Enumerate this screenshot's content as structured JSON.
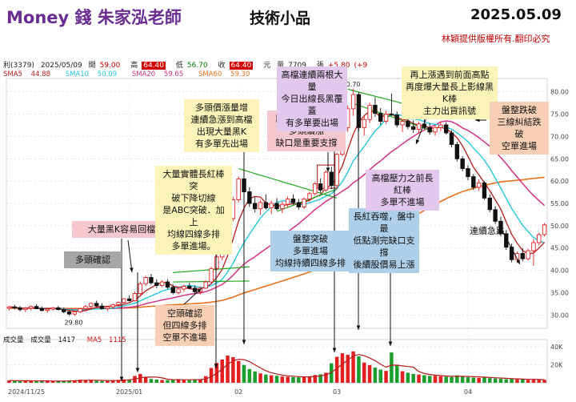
{
  "header": {
    "title": "Money 錢  朱家泓老師",
    "topic": "技術小品",
    "date": "2025.05.09",
    "copyright": "林穎提供版權所有.翻印必究"
  },
  "quote": {
    "code": "利(3379)",
    "date": "2025/05/09",
    "open_label": "開",
    "open": "59.00",
    "high_label": "高",
    "high": "64.40",
    "low_label": "低",
    "low": "56.70",
    "close_label": "收",
    "close": "64.40",
    "unit": "元",
    "volume_label": "量",
    "volume": "7709",
    "change_label": "張",
    "change": "+5.80",
    "change_pct": "(+9"
  },
  "ma_legend": [
    {
      "label": "SMA5",
      "value": "44.88",
      "color": "#b71c1c"
    },
    {
      "label": "SMA10",
      "value": "50.09",
      "color": "#26c6da"
    },
    {
      "label": "SMA20",
      "value": "59.65",
      "color": "#d63384"
    },
    {
      "label": "SMA60",
      "value": "59.30",
      "color": "#e8711c"
    }
  ],
  "volume_legend": {
    "label1": "成交量",
    "label2": "成交量",
    "value": "1417",
    "ma_label": "MA5",
    "ma_value": "1115"
  },
  "annotations": {
    "a1": "大量黑K容易回檔",
    "a2": "多頭確認",
    "a3": "空頭確認\n但四線多排\n空單不進場",
    "a4": "大量實體長紅棒突\n破下降切線\n是ABC突破．加上\n均線四線多排\n多單進場。",
    "a5": "多頭價漲量增\n連續急漲到高檔\n出現大量黑K\n有多單先出場",
    "a6": "跳空上漲過前高\n多頭續漲\n缺口是重要支撐",
    "a7": "盤整突破\n多單進場\n均線持續四線多排",
    "a8": "高檔連續兩根大量\n今日出線長黑覆蓋\n有多單要出場",
    "a9": "長紅吞噬，盤中最\n低點測完缺口支撐\n後續股價易上漲",
    "a10": "高檔壓力之前長紅棒\n多單不進場",
    "a11": "再上漲遇到前面高點\n再度爆大量長上影線黑K棒\n主力出貨訊號",
    "a12": "盤整跌破\n三線糾結跌破\n空單進場",
    "a13": "連續急跌"
  },
  "chart_data": {
    "type": "candlestick",
    "y_ticks": [
      30,
      35,
      40,
      45,
      50,
      55,
      60,
      65,
      70,
      75,
      80
    ],
    "ylim": [
      27,
      83
    ],
    "volume_ticks": [
      "20K",
      "40K"
    ],
    "volume_ylim": [
      0,
      48000
    ],
    "x_labels": [
      "2024/11/25",
      "2025/01",
      "02",
      "03",
      "04"
    ],
    "price_labels": {
      "high": "80.70",
      "low": "29.80"
    },
    "candles": [
      [
        31.5,
        32.0,
        31.0,
        31.8
      ],
      [
        31.8,
        32.3,
        31.2,
        31.6
      ],
      [
        31.6,
        32.0,
        30.8,
        31.2
      ],
      [
        31.2,
        31.8,
        30.6,
        31.5
      ],
      [
        31.5,
        32.1,
        31.0,
        31.9
      ],
      [
        31.9,
        32.4,
        31.3,
        31.4
      ],
      [
        31.4,
        31.9,
        30.8,
        31.0
      ],
      [
        31.0,
        31.6,
        30.5,
        31.3
      ],
      [
        31.3,
        31.8,
        30.9,
        31.6
      ],
      [
        31.6,
        32.0,
        31.0,
        31.2
      ],
      [
        31.2,
        31.6,
        30.4,
        30.7
      ],
      [
        30.7,
        31.2,
        29.8,
        30.2
      ],
      [
        30.2,
        30.9,
        29.8,
        30.7
      ],
      [
        30.7,
        31.6,
        30.4,
        31.4
      ],
      [
        31.4,
        32.2,
        31.0,
        31.9
      ],
      [
        31.9,
        32.8,
        31.5,
        32.6
      ],
      [
        32.6,
        33.2,
        31.8,
        32.0
      ],
      [
        32.0,
        32.6,
        31.2,
        31.4
      ],
      [
        31.4,
        32.0,
        30.8,
        31.8
      ],
      [
        31.8,
        32.5,
        31.4,
        32.3
      ],
      [
        32.3,
        33.0,
        31.9,
        32.8
      ],
      [
        32.8,
        33.8,
        32.4,
        33.6
      ],
      [
        33.6,
        34.4,
        33.0,
        33.2
      ],
      [
        33.2,
        35.2,
        33.0,
        34.8
      ],
      [
        34.8,
        37.5,
        34.5,
        37.0
      ],
      [
        37.0,
        38.8,
        36.5,
        38.4
      ],
      [
        38.4,
        39.2,
        36.8,
        37.2
      ],
      [
        37.2,
        38.0,
        36.0,
        36.6
      ],
      [
        36.6,
        37.8,
        36.2,
        37.4
      ],
      [
        37.4,
        38.0,
        35.8,
        36.2
      ],
      [
        36.2,
        36.8,
        34.6,
        35.0
      ],
      [
        35.0,
        36.2,
        34.6,
        35.8
      ],
      [
        35.8,
        36.8,
        35.2,
        36.4
      ],
      [
        36.4,
        37.2,
        35.8,
        36.0
      ],
      [
        36.0,
        36.6,
        34.8,
        35.2
      ],
      [
        35.2,
        36.4,
        34.6,
        36.0
      ],
      [
        36.0,
        37.8,
        35.8,
        37.4
      ],
      [
        37.4,
        40.8,
        37.2,
        40.4
      ],
      [
        40.4,
        43.5,
        40.0,
        43.0
      ],
      [
        43.0,
        44.8,
        42.2,
        44.2
      ],
      [
        44.2,
        52.0,
        44.0,
        51.6
      ],
      [
        51.6,
        56.5,
        51.0,
        55.8
      ],
      [
        55.8,
        61.0,
        55.2,
        60.5
      ],
      [
        60.5,
        62.4,
        56.8,
        57.6
      ],
      [
        57.6,
        58.6,
        54.2,
        55.0
      ],
      [
        55.0,
        56.4,
        53.0,
        53.8
      ],
      [
        53.8,
        55.8,
        52.4,
        55.2
      ],
      [
        55.2,
        57.0,
        53.6,
        54.0
      ],
      [
        54.0,
        55.6,
        52.6,
        55.0
      ],
      [
        55.0,
        56.2,
        53.4,
        53.8
      ],
      [
        53.8,
        55.4,
        52.8,
        54.8
      ],
      [
        54.8,
        56.6,
        54.0,
        56.0
      ],
      [
        56.0,
        57.0,
        54.6,
        55.2
      ],
      [
        55.2,
        56.0,
        53.6,
        54.2
      ],
      [
        54.2,
        56.4,
        53.8,
        56.0
      ],
      [
        56.0,
        57.6,
        55.4,
        57.2
      ],
      [
        57.2,
        59.8,
        56.8,
        59.4
      ],
      [
        59.4,
        60.6,
        57.4,
        58.0
      ],
      [
        58.0,
        62.4,
        57.6,
        62.0
      ],
      [
        62.0,
        63.2,
        58.2,
        59.0
      ],
      [
        59.0,
        66.4,
        58.6,
        66.0
      ],
      [
        66.0,
        72.6,
        65.6,
        72.0
      ],
      [
        72.0,
        77.0,
        71.0,
        76.2
      ],
      [
        76.2,
        80.7,
        74.6,
        79.4
      ],
      [
        79.4,
        80.0,
        71.2,
        72.0
      ],
      [
        72.0,
        74.6,
        70.2,
        73.8
      ],
      [
        73.8,
        77.6,
        73.0,
        77.0
      ],
      [
        77.0,
        78.8,
        74.4,
        75.2
      ],
      [
        75.2,
        76.4,
        72.6,
        73.4
      ],
      [
        73.4,
        75.8,
        72.8,
        75.0
      ],
      [
        75.0,
        79.6,
        74.6,
        74.8
      ],
      [
        74.8,
        75.6,
        72.0,
        72.6
      ],
      [
        72.6,
        74.0,
        71.0,
        73.4
      ],
      [
        73.4,
        74.6,
        71.6,
        72.2
      ],
      [
        72.2,
        73.6,
        70.8,
        71.6
      ],
      [
        71.6,
        73.4,
        70.6,
        72.8
      ],
      [
        72.8,
        74.2,
        71.6,
        72.0
      ],
      [
        72.0,
        73.0,
        70.4,
        71.0
      ],
      [
        71.0,
        72.6,
        70.2,
        72.0
      ],
      [
        72.0,
        73.4,
        71.2,
        72.6
      ],
      [
        72.6,
        73.2,
        70.4,
        70.8
      ],
      [
        70.8,
        71.4,
        67.6,
        68.2
      ],
      [
        68.2,
        68.8,
        64.4,
        65.0
      ],
      [
        65.0,
        65.6,
        62.2,
        62.8
      ],
      [
        62.8,
        63.6,
        60.2,
        61.0
      ],
      [
        61.0,
        61.6,
        58.0,
        58.6
      ],
      [
        58.6,
        60.4,
        57.8,
        59.6
      ],
      [
        59.6,
        60.0,
        55.8,
        56.2
      ],
      [
        56.2,
        57.0,
        53.0,
        53.6
      ],
      [
        53.6,
        54.4,
        50.4,
        51.0
      ],
      [
        51.0,
        52.0,
        47.6,
        48.2
      ],
      [
        48.2,
        49.0,
        44.6,
        45.2
      ],
      [
        45.2,
        46.0,
        41.8,
        42.4
      ],
      [
        42.4,
        44.2,
        41.6,
        43.8
      ],
      [
        43.8,
        45.0,
        42.0,
        42.6
      ],
      [
        42.6,
        44.8,
        42.2,
        44.4
      ],
      [
        44.4,
        47.0,
        41.0,
        46.2
      ],
      [
        46.2,
        48.4,
        45.6,
        48.0
      ],
      [
        48.0,
        50.6,
        47.6,
        50.2
      ]
    ],
    "volumes": [
      2600,
      2200,
      1900,
      2400,
      2100,
      1800,
      2300,
      2000,
      1700,
      1500,
      2100,
      2600,
      2900,
      3400,
      3100,
      2700,
      2300,
      2000,
      2500,
      2800,
      3200,
      3800,
      3500,
      7600,
      9800,
      6400,
      4200,
      3600,
      3100,
      2900,
      3400,
      4100,
      3500,
      2900,
      3300,
      3800,
      7400,
      16400,
      22000,
      25800,
      30200,
      28400,
      24200,
      19800,
      15200,
      12600,
      10400,
      9200,
      8400,
      7800,
      7000,
      6800,
      6400,
      6100,
      6800,
      7200,
      8600,
      9400,
      11200,
      21600,
      28800,
      32800,
      31000,
      34800,
      29400,
      22400,
      19600,
      16800,
      14600,
      13200,
      33600,
      19400,
      12800,
      11200,
      9800,
      9200,
      8400,
      7600,
      7800,
      7200,
      6800,
      6400,
      8200,
      7400,
      6200,
      5800,
      5400,
      6600,
      5200,
      4800,
      4400,
      4000,
      4600,
      3800,
      3600,
      3300,
      3900,
      3400,
      3200
    ],
    "series": [
      {
        "name": "SMA5",
        "color": "#b71c1c"
      },
      {
        "name": "SMA10",
        "color": "#26c6da"
      },
      {
        "name": "SMA20",
        "color": "#d63384"
      },
      {
        "name": "SMA60",
        "color": "#e8711c"
      },
      {
        "name": "MA5",
        "color": "#b71c1c"
      }
    ],
    "grid": true
  },
  "colors": {
    "up": "#e32020",
    "down": "#111111",
    "vol_up": "#e32020",
    "vol_down": "#1a9e2c",
    "trend": "#22aa22"
  }
}
